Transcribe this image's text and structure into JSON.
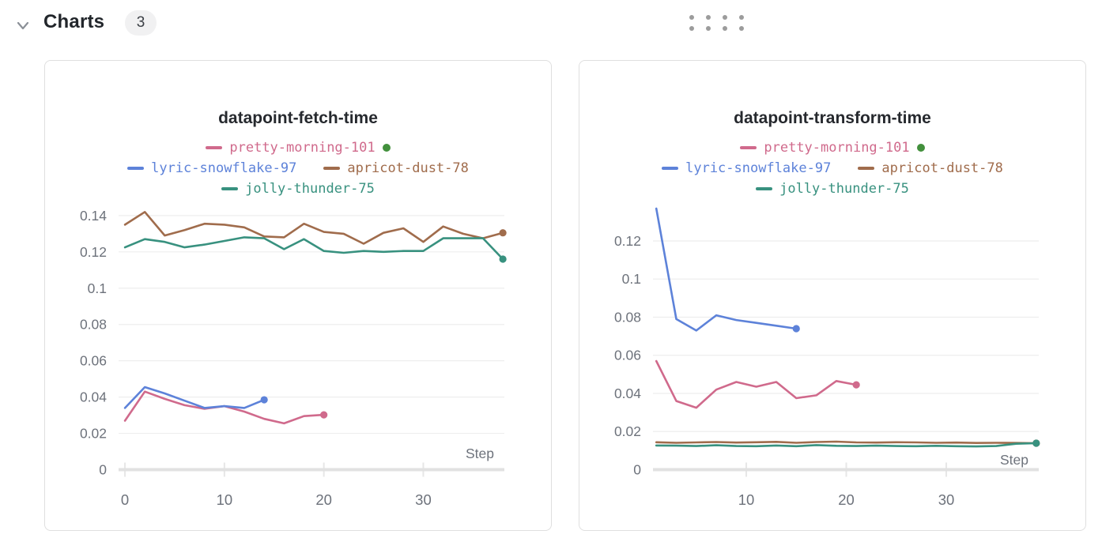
{
  "section": {
    "title": "Charts",
    "count": "3"
  },
  "icons": {
    "collapse": "chevron-down-icon",
    "drag": "drag-handle-dots-icon"
  },
  "colors": {
    "grid": "#eeeeee",
    "axis_line": "#e1e1e1",
    "tick_line": "#e7e7e7",
    "tick_text": "#6d727b",
    "title_text": "#26292e",
    "card_border": "#dfdfdf",
    "run_state_green": "#42903c"
  },
  "chart_data": [
    {
      "type": "line",
      "title": "datapoint-fetch-time",
      "xlabel": "Step",
      "xlabel_baseline_y": 503,
      "x_tick_labels": [
        "0",
        "10",
        "20",
        "30"
      ],
      "x_tick_values": [
        0,
        10,
        20,
        30
      ],
      "y_tick_labels": [
        "0.14",
        "0.12",
        "0.1",
        "0.08",
        "0.06",
        "0.04",
        "0.02",
        "0"
      ],
      "y_tick_values": [
        0.14,
        0.12,
        0.1,
        0.08,
        0.06,
        0.04,
        0.02,
        0
      ],
      "xlim": [
        -0.64,
        38.15
      ],
      "ylim": [
        0,
        0.1443
      ],
      "grid": true,
      "legend_position": "top",
      "legend_rows": [
        [
          0
        ],
        [
          1,
          2
        ],
        [
          3
        ]
      ],
      "series": [
        {
          "name": "pretty-morning-101",
          "color": "#d06a8c",
          "state_dot": "#42903c",
          "x0": 0,
          "dx": 2,
          "values": [
            0.027,
            0.043,
            0.039,
            0.0355,
            0.0335,
            0.035,
            0.032,
            0.028,
            0.0255,
            0.0295,
            0.0302
          ]
        },
        {
          "name": "lyric-snowflake-97",
          "color": "#5d82d9",
          "x0": 0,
          "dx": 2,
          "values": [
            0.034,
            0.0455,
            0.042,
            0.038,
            0.034,
            0.035,
            0.034,
            0.0385
          ]
        },
        {
          "name": "apricot-dust-78",
          "color": "#a06c4c",
          "x0": 0,
          "dx": 2,
          "values": [
            0.135,
            0.142,
            0.129,
            0.132,
            0.1355,
            0.135,
            0.1335,
            0.1285,
            0.128,
            0.1355,
            0.131,
            0.13,
            0.1245,
            0.1305,
            0.133,
            0.1255,
            0.134,
            0.13,
            0.1275,
            0.1305
          ]
        },
        {
          "name": "jolly-thunder-75",
          "color": "#38917f",
          "x0": 0,
          "dx": 2,
          "values": [
            0.1225,
            0.127,
            0.1255,
            0.1225,
            0.124,
            0.126,
            0.128,
            0.1275,
            0.1215,
            0.127,
            0.1205,
            0.1195,
            0.1205,
            0.12,
            0.1205,
            0.1205,
            0.1275,
            0.1275,
            0.1275,
            0.116
          ]
        }
      ]
    },
    {
      "type": "line",
      "title": "datapoint-transform-time",
      "xlabel": "Step",
      "xlabel_baseline_y": 511,
      "x_tick_labels": [
        "10",
        "20",
        "30"
      ],
      "x_tick_values": [
        10,
        20,
        30
      ],
      "y_tick_labels": [
        "0.12",
        "0.1",
        "0.08",
        "0.06",
        "0.04",
        "0.02",
        "0"
      ],
      "y_tick_values": [
        0.12,
        0.1,
        0.08,
        0.06,
        0.04,
        0.02,
        0
      ],
      "xlim": [
        0.67,
        39.25
      ],
      "ylim": [
        0,
        0.1374
      ],
      "grid": true,
      "legend_position": "top",
      "legend_rows": [
        [
          0
        ],
        [
          1,
          2
        ],
        [
          3
        ]
      ],
      "series": [
        {
          "name": "pretty-morning-101",
          "color": "#d06a8c",
          "state_dot": "#42903c",
          "x0": 1,
          "dx": 2,
          "values": [
            0.057,
            0.036,
            0.0325,
            0.042,
            0.046,
            0.0435,
            0.046,
            0.0375,
            0.039,
            0.0465,
            0.0445
          ]
        },
        {
          "name": "lyric-snowflake-97",
          "color": "#5d82d9",
          "x0": 1,
          "dx": 2,
          "values": [
            0.137,
            0.079,
            0.073,
            0.081,
            0.0785,
            0.077,
            0.0755,
            0.074
          ]
        },
        {
          "name": "apricot-dust-78",
          "color": "#a06c4c",
          "x0": 1,
          "dx": 2,
          "values": [
            0.0144,
            0.0141,
            0.0143,
            0.0145,
            0.0142,
            0.0144,
            0.0146,
            0.0141,
            0.0145,
            0.0147,
            0.0143,
            0.0142,
            0.0144,
            0.0143,
            0.0141,
            0.0142,
            0.014,
            0.0141,
            0.014,
            0.0139
          ]
        },
        {
          "name": "jolly-thunder-75",
          "color": "#38917f",
          "x0": 1,
          "dx": 2,
          "values": [
            0.0127,
            0.0126,
            0.0124,
            0.0128,
            0.0124,
            0.0123,
            0.0127,
            0.0123,
            0.0129,
            0.0125,
            0.0124,
            0.0126,
            0.0124,
            0.0123,
            0.0125,
            0.0123,
            0.0122,
            0.0124,
            0.0136,
            0.0139
          ]
        }
      ]
    }
  ]
}
